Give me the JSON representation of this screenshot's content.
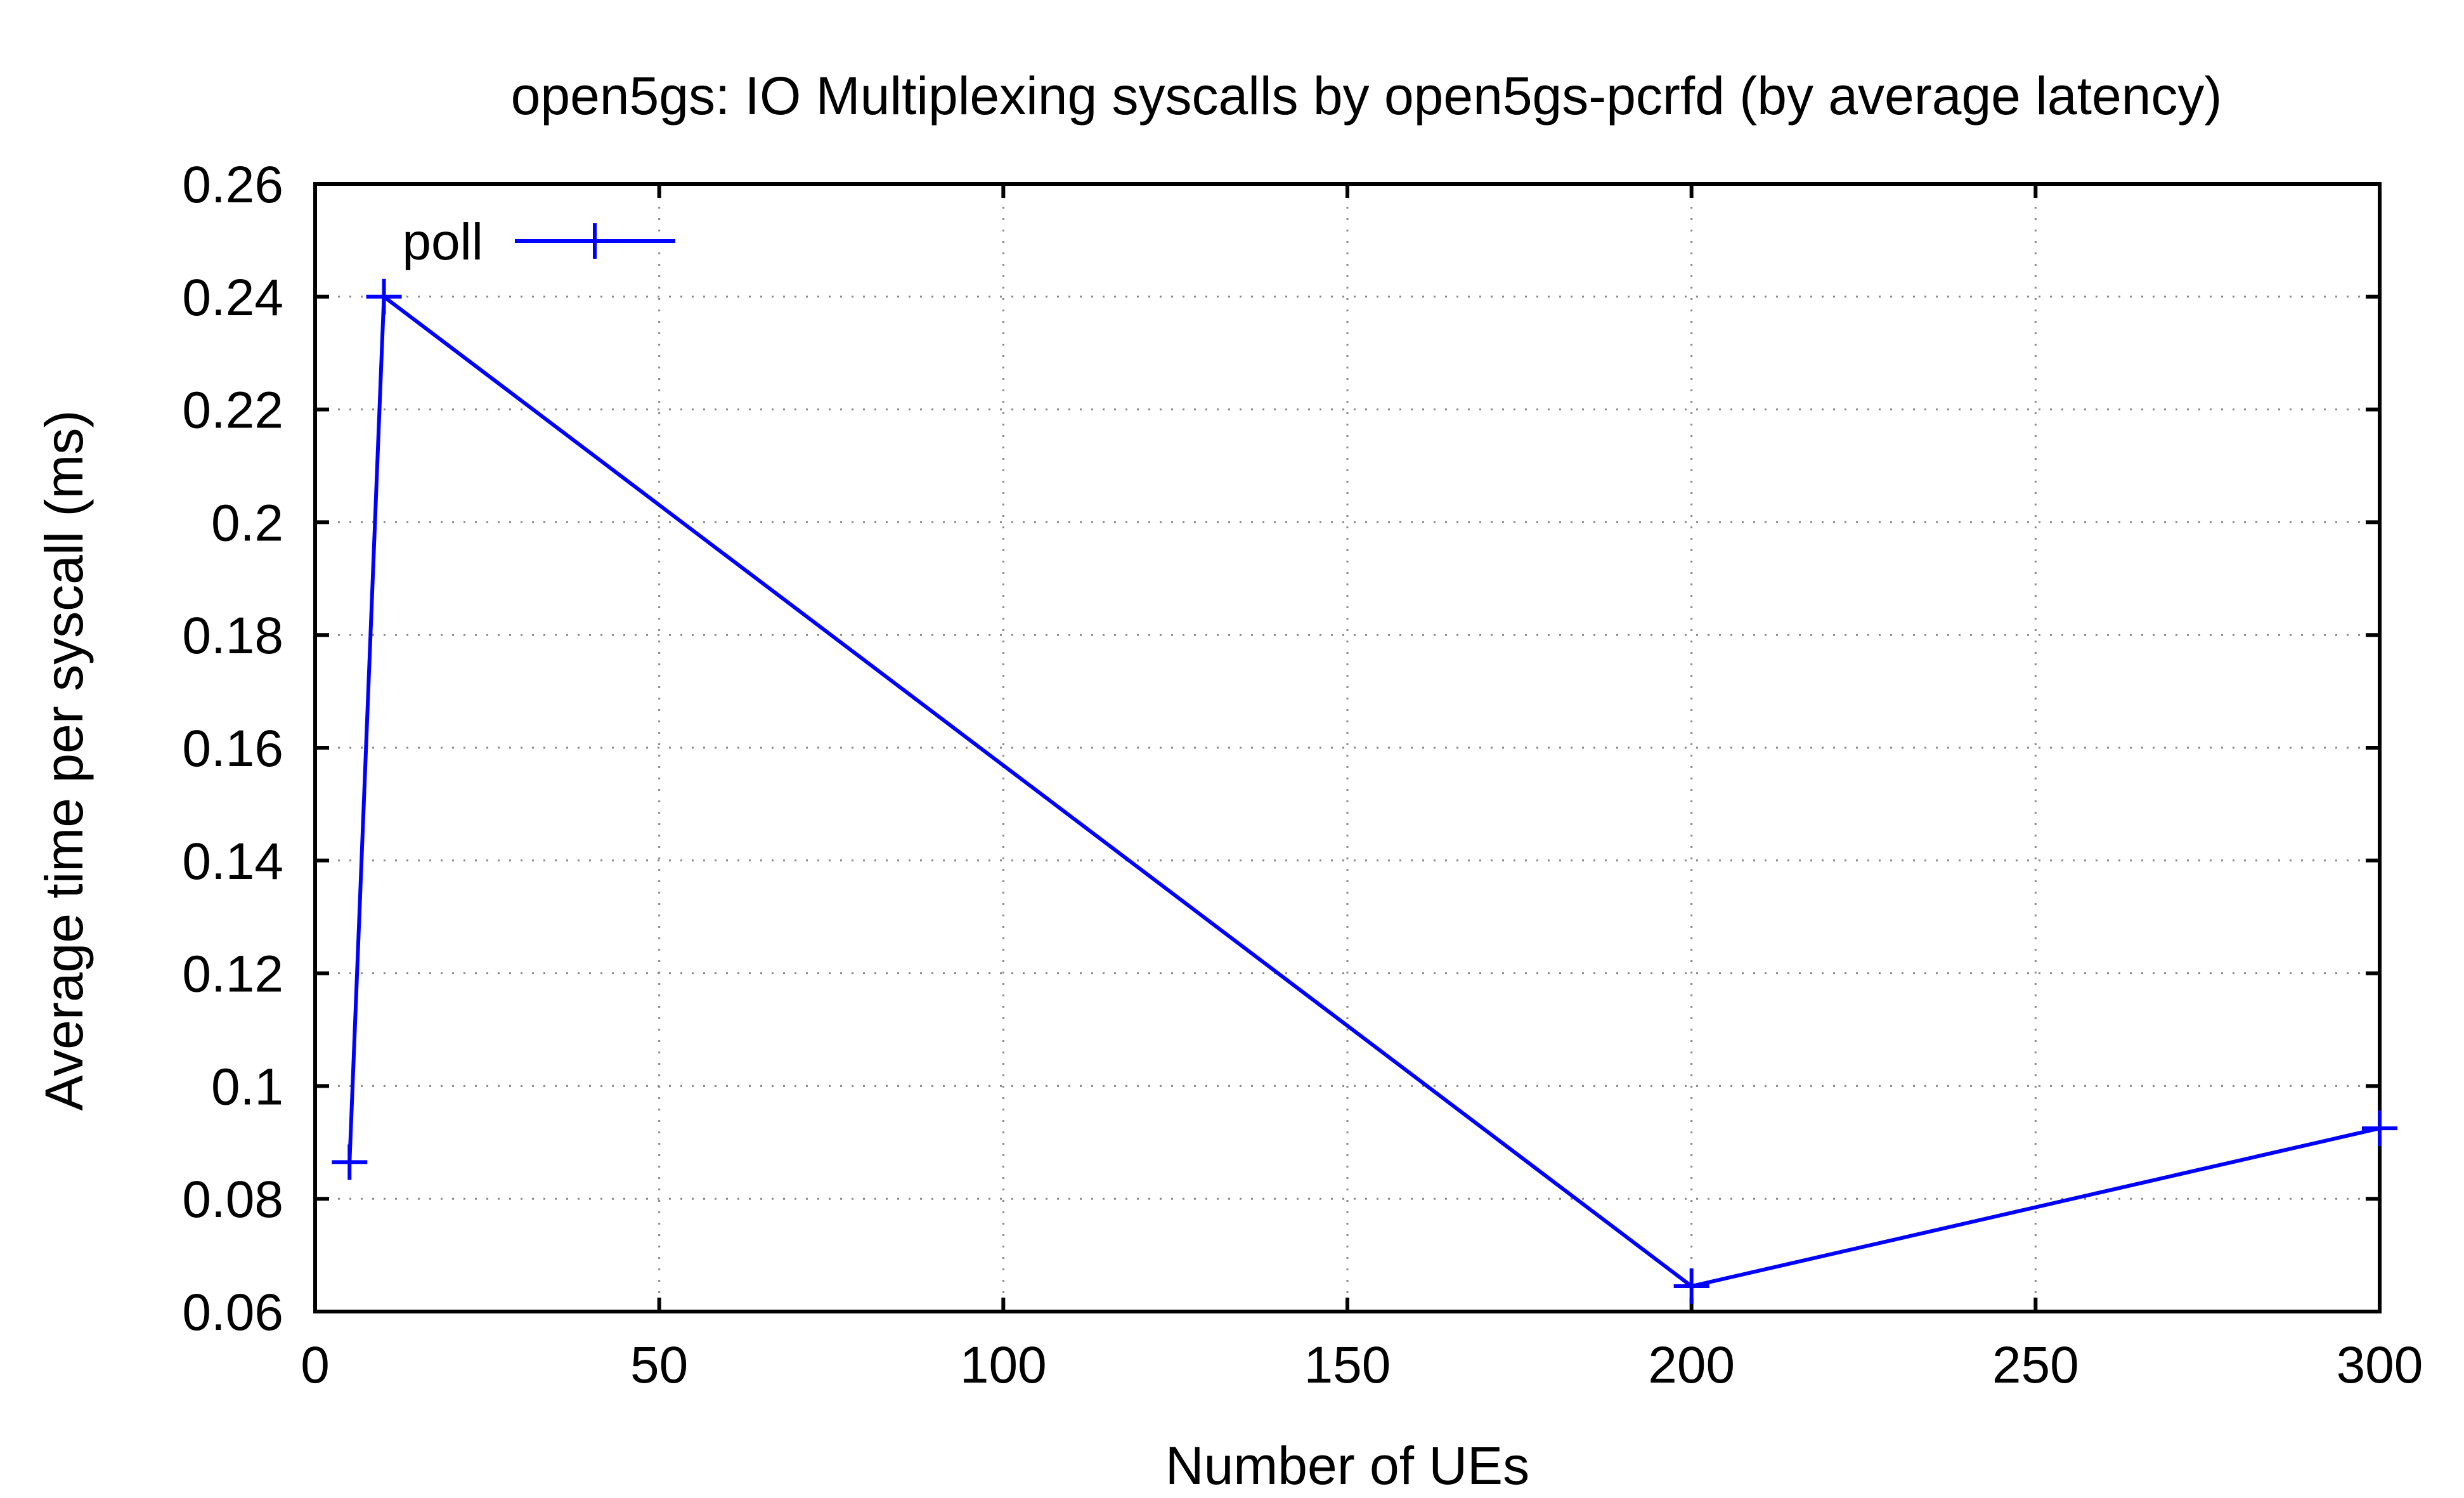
{
  "chart_data": {
    "type": "line",
    "title": "open5gs: IO Multiplexing syscalls by open5gs-pcrfd (by average latency)",
    "xlabel": "Number of UEs",
    "ylabel": "Average time per syscall (ms)",
    "xlim": [
      0,
      300
    ],
    "ylim": [
      0.06,
      0.26
    ],
    "xticks": [
      0,
      50,
      100,
      150,
      200,
      250,
      300
    ],
    "yticks": [
      0.06,
      0.08,
      0.1,
      0.12,
      0.14,
      0.16,
      0.18,
      0.2,
      0.22,
      0.24,
      0.26
    ],
    "xtick_labels": [
      "0",
      "50",
      "100",
      "150",
      "200",
      "250",
      "300"
    ],
    "ytick_labels": [
      "0.06",
      "0.08",
      "0.1",
      "0.12",
      "0.14",
      "0.16",
      "0.18",
      "0.2",
      "0.22",
      "0.24",
      "0.26"
    ],
    "grid": true,
    "legend_position": "top-left",
    "series": [
      {
        "name": "poll",
        "color": "#0000ff",
        "marker": "plus",
        "x": [
          5,
          10,
          200,
          300
        ],
        "y": [
          0.0865,
          0.24,
          0.0645,
          0.0925
        ]
      }
    ]
  }
}
